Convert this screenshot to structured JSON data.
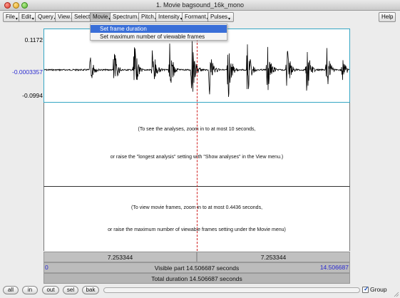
{
  "window": {
    "title": "1. Movie bagsound_16k_mono"
  },
  "menubar": {
    "items": [
      {
        "label": "File"
      },
      {
        "label": "Edit"
      },
      {
        "label": "Query"
      },
      {
        "label": "View"
      },
      {
        "label": "Select"
      },
      {
        "label": "Movie",
        "active": true
      },
      {
        "label": "Spectrum"
      },
      {
        "label": "Pitch"
      },
      {
        "label": "Intensity"
      },
      {
        "label": "Formant"
      },
      {
        "label": "Pulses"
      }
    ],
    "help": "Help"
  },
  "movie_menu": {
    "items": [
      {
        "label": "Set frame duration",
        "selected": true
      },
      {
        "label": "Set maximum number of viewable frames",
        "selected": false
      }
    ]
  },
  "waveform": {
    "y_max": "0.1172",
    "y_zero": "-0.0003357",
    "y_min": "-0.0994",
    "waveform_color": "#000000",
    "border_color": "#35a6c4"
  },
  "analysis_panel": {
    "line1": "(To see the analyses, zoom in to at most 10 seconds,",
    "line2": "or raise the \"longest analysis\" setting with \"Show analyses\" in the View menu.)"
  },
  "movie_panel": {
    "line1": "(To view movie frames, zoom in to at most 0.4436 seconds,",
    "line2": "or raise the maximum number of viewable frames setting under the Movie menu)"
  },
  "bottom_bars": {
    "selection_left": "7.253344",
    "selection_right": "7.253344",
    "visible_start": "0",
    "visible_text": "Visible part 14.506687 seconds",
    "visible_end": "14.506687",
    "total_text": "Total duration 14.506687 seconds"
  },
  "controls": {
    "all": "all",
    "in": "in",
    "out": "out",
    "sel": "sel",
    "bak": "bak",
    "group_label": "Group",
    "group_checked": true
  }
}
